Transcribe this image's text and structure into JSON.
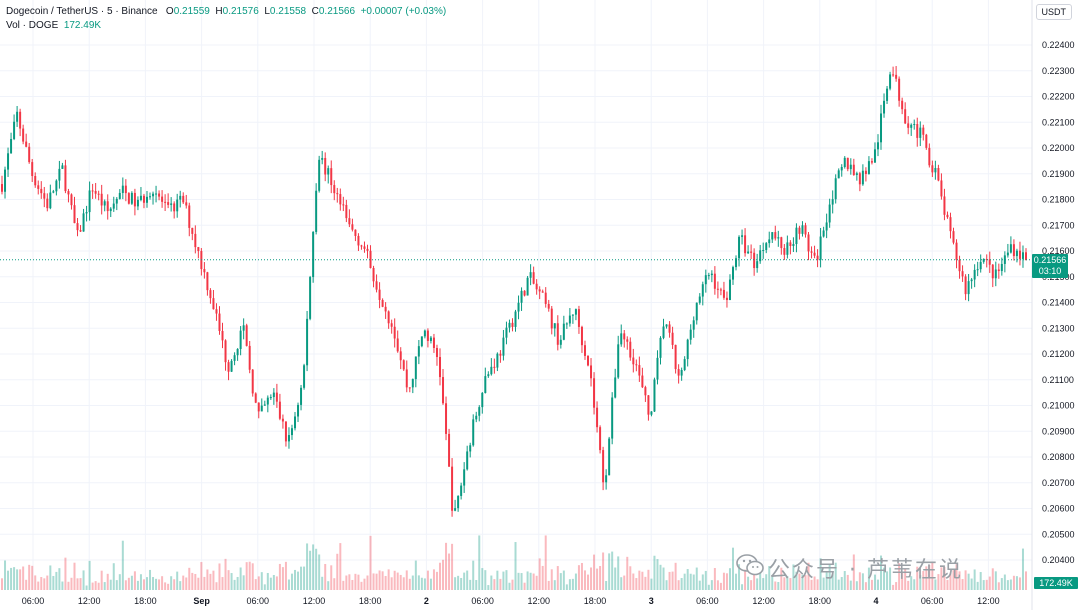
{
  "header": {
    "symbol": "Dogecoin / TetherUS · 5 · Binance",
    "o_label": "O",
    "o_value": "0.21559",
    "h_label": "H",
    "h_value": "0.21576",
    "l_label": "L",
    "l_value": "0.21558",
    "c_label": "C",
    "c_value": "0.21566",
    "change": "+0.00007 (+0.03%)",
    "vol_label": "Vol · DOGE",
    "vol_value": "172.49K"
  },
  "currency": "USDT",
  "price_tag": {
    "price": "0.21566",
    "countdown": "03:10"
  },
  "volume_tag": "172.49K",
  "watermark": "公众号 · 芦苇在说",
  "colors": {
    "up": "#089981",
    "down": "#f23645",
    "grid": "#f0f3fa"
  },
  "chart_data": {
    "type": "candlestick",
    "symbol": "DOGE/USDT",
    "interval": "5",
    "ylim": [
      0.2038,
      0.2246
    ],
    "y_ticks": [
      "0.22400",
      "0.22300",
      "0.22200",
      "0.22100",
      "0.22000",
      "0.21900",
      "0.21800",
      "0.21700",
      "0.21600",
      "0.21500",
      "0.21400",
      "0.21300",
      "0.21200",
      "0.21100",
      "0.21000",
      "0.20900",
      "0.20800",
      "0.20700",
      "0.20600",
      "0.20500",
      "0.20400"
    ],
    "x_ticks": [
      {
        "label": "06:00"
      },
      {
        "label": "12:00"
      },
      {
        "label": "18:00"
      },
      {
        "label": "Sep",
        "bold": true
      },
      {
        "label": "06:00"
      },
      {
        "label": "12:00"
      },
      {
        "label": "18:00"
      },
      {
        "label": "2",
        "bold": true
      },
      {
        "label": "06:00"
      },
      {
        "label": "12:00"
      },
      {
        "label": "18:00"
      },
      {
        "label": "3",
        "bold": true
      },
      {
        "label": "06:00"
      },
      {
        "label": "12:00"
      },
      {
        "label": "18:00"
      },
      {
        "label": "4",
        "bold": true
      },
      {
        "label": "06:00"
      },
      {
        "label": "12:00"
      }
    ],
    "last_price": 0.21566,
    "close_path": [
      0.2186,
      0.2213,
      0.219,
      0.2178,
      0.2192,
      0.2165,
      0.2185,
      0.2175,
      0.2183,
      0.2178,
      0.2185,
      0.2175,
      0.218,
      0.216,
      0.214,
      0.2115,
      0.213,
      0.2095,
      0.2105,
      0.2085,
      0.211,
      0.2198,
      0.2185,
      0.217,
      0.2162,
      0.2145,
      0.213,
      0.2105,
      0.213,
      0.2118,
      0.2055,
      0.2085,
      0.211,
      0.212,
      0.2135,
      0.215,
      0.214,
      0.2125,
      0.2138,
      0.2115,
      0.2068,
      0.213,
      0.2118,
      0.2095,
      0.2135,
      0.2108,
      0.2138,
      0.2152,
      0.214,
      0.2165,
      0.2155,
      0.2168,
      0.216,
      0.217,
      0.2155,
      0.218,
      0.2195,
      0.2188,
      0.2198,
      0.2232,
      0.2212,
      0.2205,
      0.219,
      0.2165,
      0.2145,
      0.2158,
      0.215,
      0.2162,
      0.2157
    ]
  }
}
